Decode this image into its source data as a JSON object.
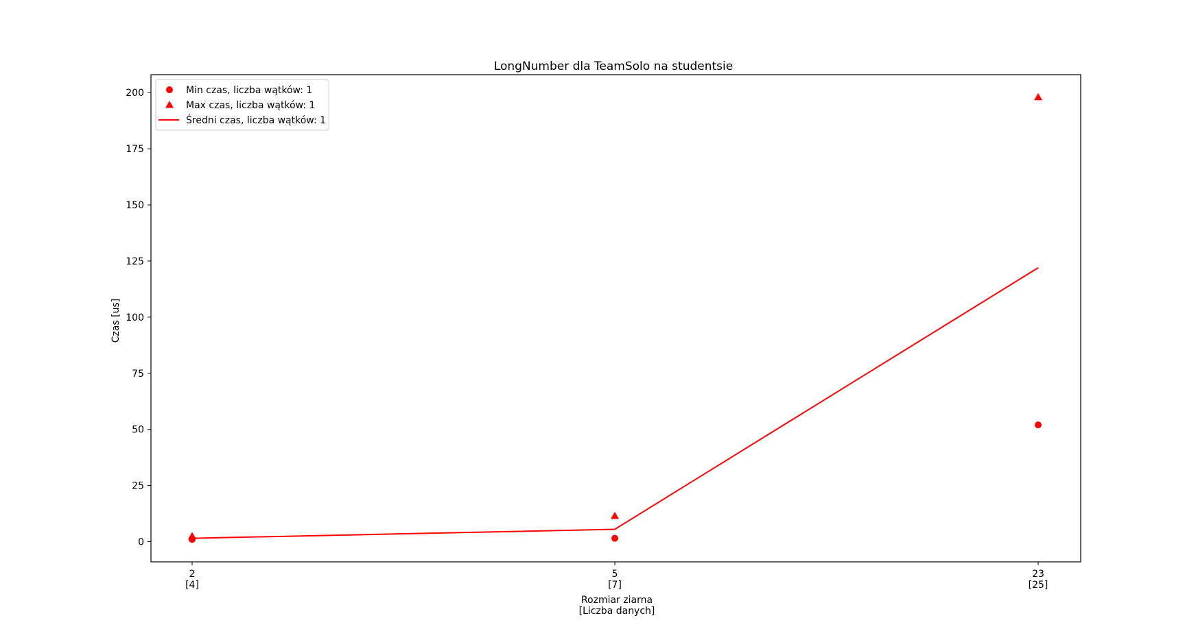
{
  "chart_data": {
    "type": "line",
    "title": "LongNumber dla TeamSolo na studentsie",
    "xlabel": [
      "Rozmiar ziarna",
      "[Liczba danych]"
    ],
    "ylabel": "Czas [us]",
    "x": [
      2,
      5,
      23
    ],
    "x_tick_labels": [
      [
        "2",
        "[4]"
      ],
      [
        "5",
        "[7]"
      ],
      [
        "23",
        "[25]"
      ]
    ],
    "ylim": [
      -9,
      208
    ],
    "y_ticks": [
      0,
      25,
      50,
      75,
      100,
      125,
      150,
      175,
      200
    ],
    "grid": false,
    "legend_position": "top-left",
    "series": [
      {
        "name": "Min czas, liczba wątków: 1",
        "kind": "scatter",
        "marker": "circle",
        "color": "#ff0000",
        "values": [
          1.0,
          1.5,
          52.0
        ]
      },
      {
        "name": "Max czas, liczba wątków: 1",
        "kind": "scatter",
        "marker": "triangle",
        "color": "#ff0000",
        "values": [
          2.5,
          11.5,
          198.0
        ]
      },
      {
        "name": "Średni czas, liczba wątków: 1",
        "kind": "line",
        "color": "#ff0000",
        "values": [
          1.5,
          5.5,
          122.0
        ]
      }
    ]
  }
}
